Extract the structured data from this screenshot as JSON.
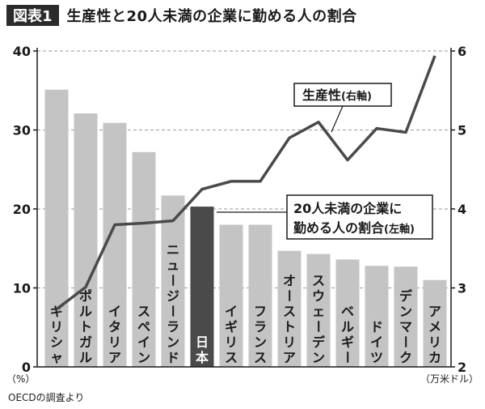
{
  "header": {
    "badge": "図表1",
    "title": "生産性と20人未満の企業に勤める人の割合"
  },
  "source": "OECDの調査より",
  "chart_data": {
    "type": "bar",
    "categories": [
      "ギリシャ",
      "ポルトガル",
      "イタリア",
      "スペイン",
      "ニュージーランド",
      "日本",
      "イギリス",
      "フランス",
      "オーストリア",
      "スウェーデン",
      "ベルギー",
      "ドイツ",
      "デンマーク",
      "アメリカ"
    ],
    "highlight_category": "日本",
    "series": [
      {
        "name": "20人未満の企業に勤める人の割合",
        "type": "bar",
        "axis": "left",
        "values": [
          35.1,
          32.1,
          30.9,
          27.2,
          21.7,
          20.3,
          18.0,
          18.0,
          14.7,
          14.3,
          13.6,
          12.8,
          12.7,
          11.0
        ]
      },
      {
        "name": "生産性",
        "type": "line",
        "axis": "right",
        "values": [
          2.73,
          3.01,
          3.8,
          3.82,
          3.85,
          4.25,
          4.35,
          4.35,
          4.9,
          5.1,
          4.62,
          5.02,
          4.97,
          5.94
        ]
      }
    ],
    "left_axis": {
      "ticks": [
        "0",
        "10",
        "20",
        "30",
        "40"
      ],
      "ylim": [
        0,
        40
      ],
      "unit": "（%）"
    },
    "right_axis": {
      "ticks": [
        "2",
        "3",
        "4",
        "5",
        "6"
      ],
      "ylim": [
        2,
        6
      ],
      "unit": "（万米ドル）"
    },
    "grid": "dashed-horizontal",
    "annotations": {
      "line_label": "生産性",
      "line_label_suffix": "(右軸)",
      "bar_label_line1": "20人未満の企業に",
      "bar_label_line2": "勤める人の割合",
      "bar_label_suffix": "(左軸)"
    },
    "colors": {
      "bar": "#c4c4c4",
      "bar_highlight": "#4a4a4a",
      "line": "#4a4a4a",
      "label_on_bar": "#1a1a1a",
      "label_on_highlight": "#ffffff"
    }
  }
}
